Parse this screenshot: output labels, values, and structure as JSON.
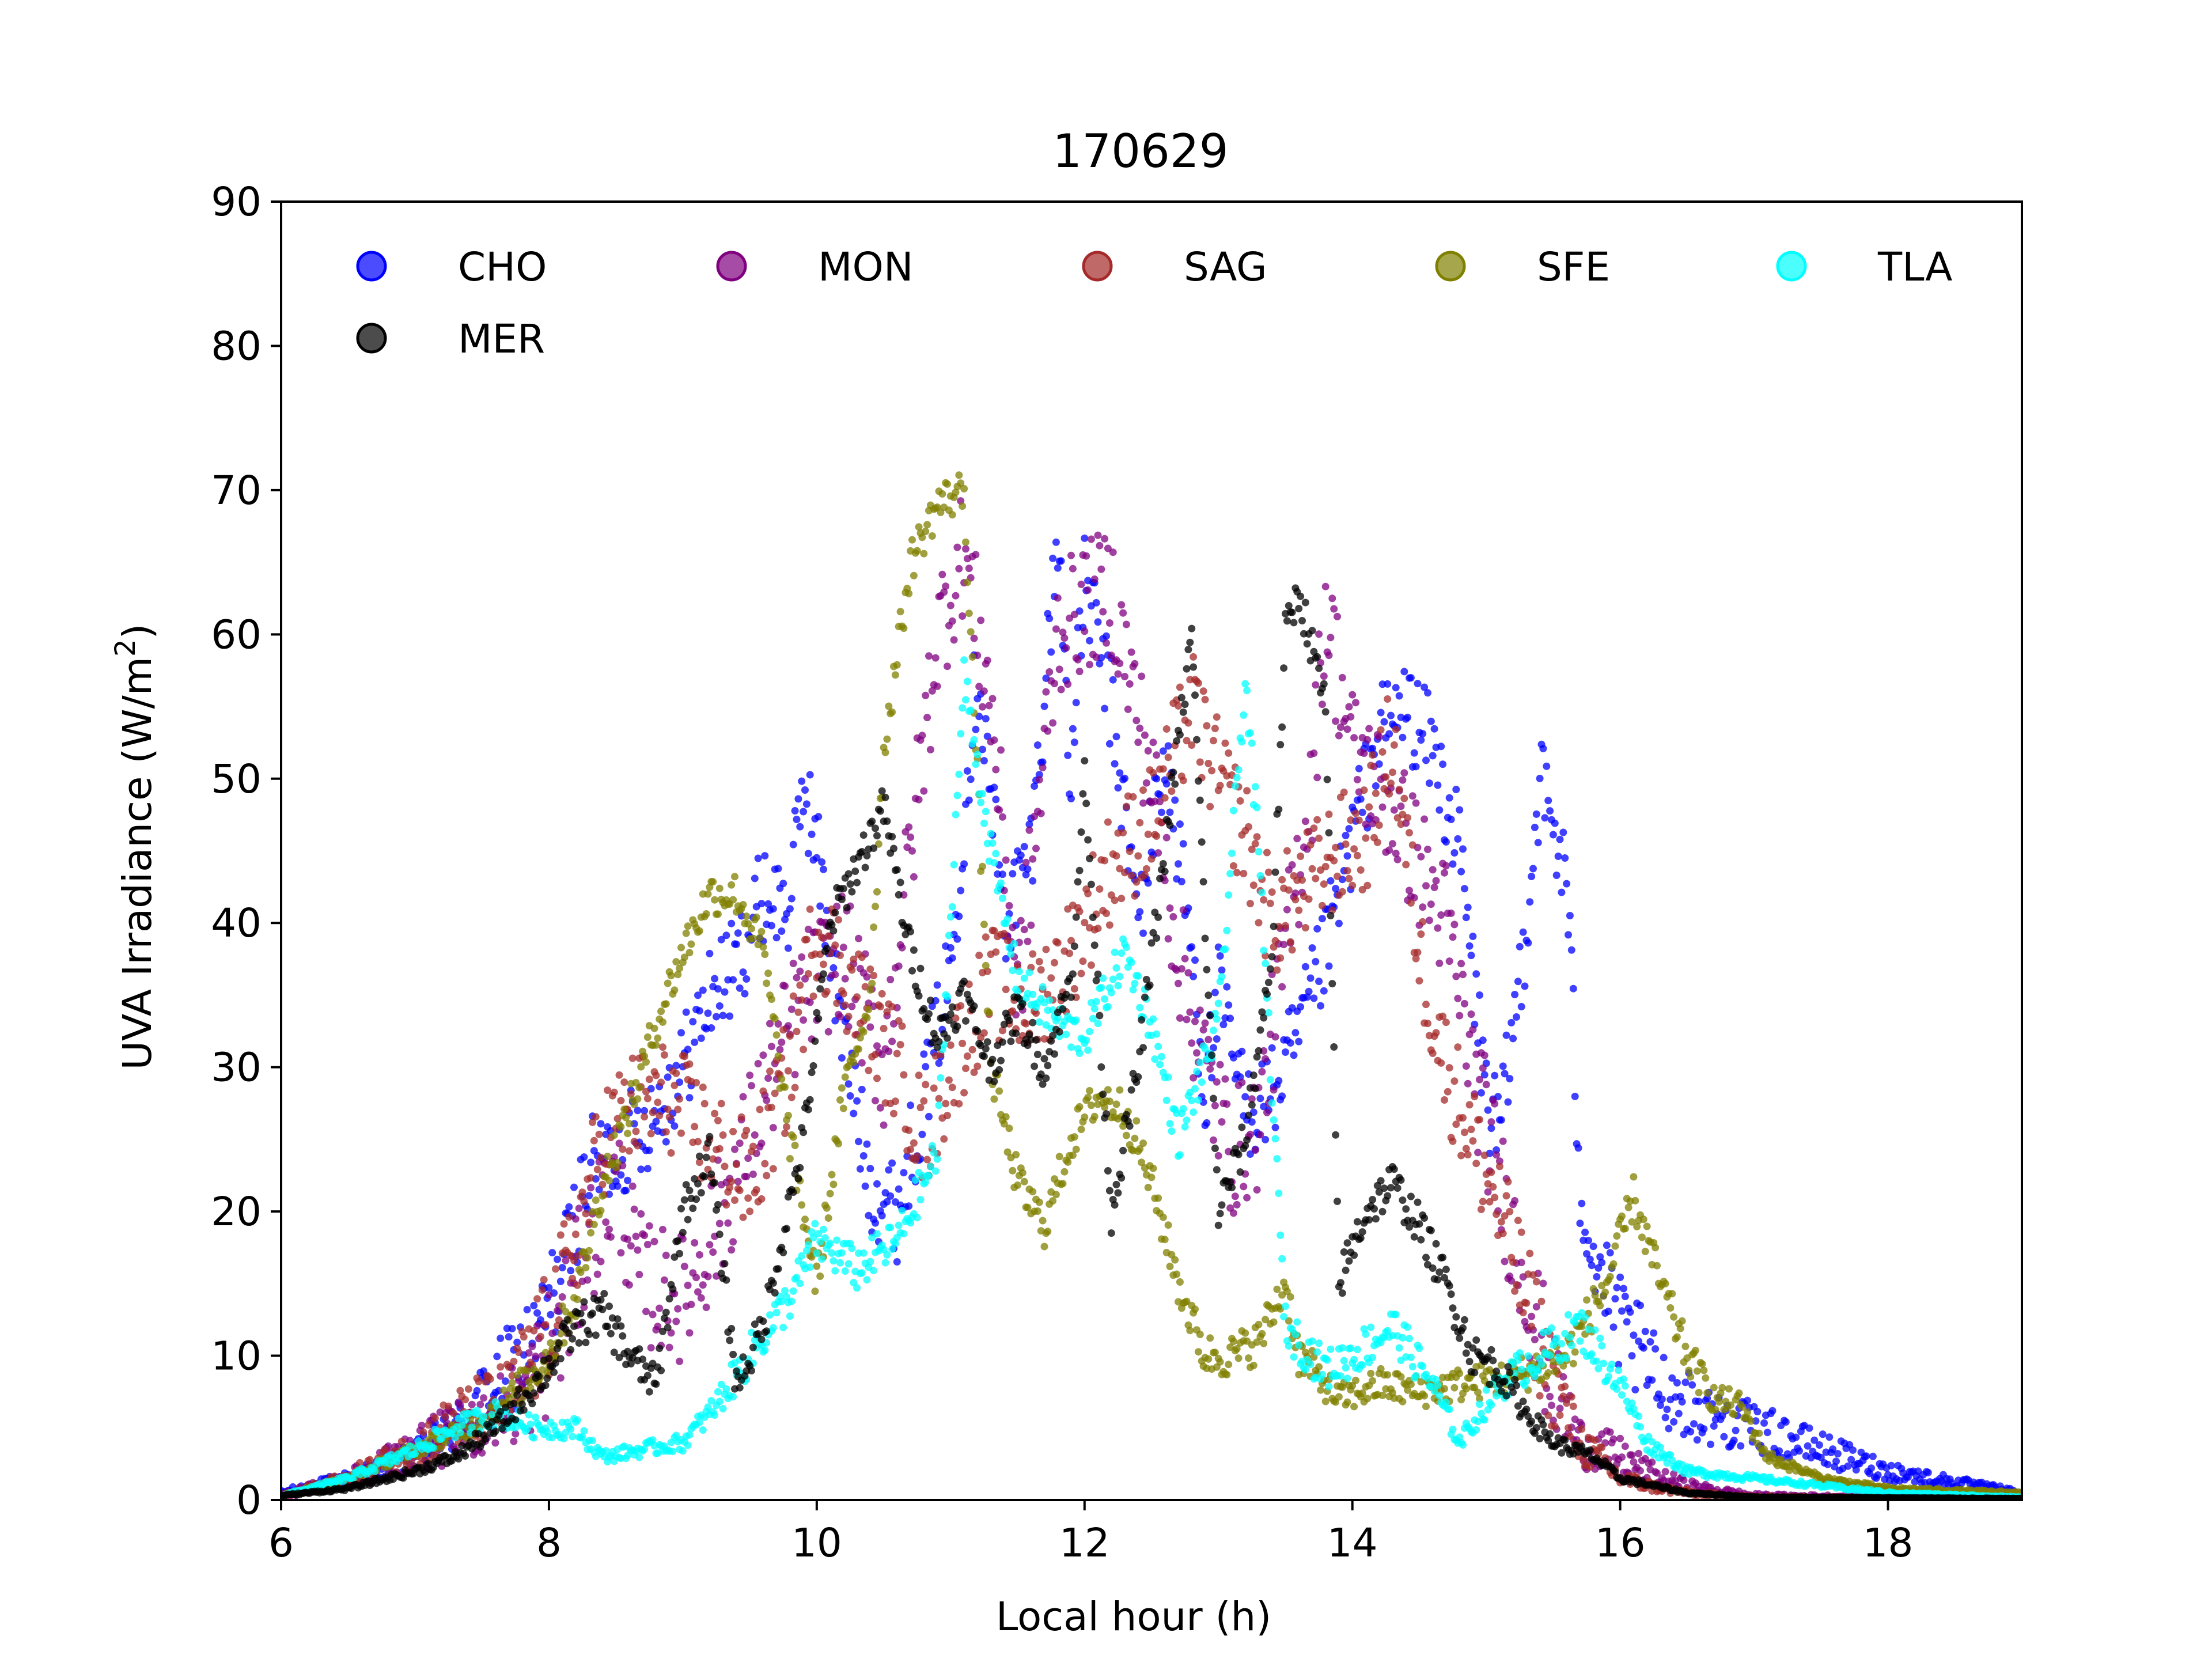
{
  "chart_data": {
    "type": "scatter",
    "title": "170629",
    "xlabel": "Local hour (h)",
    "ylabel": "UVA Irradiance (W/m²)",
    "ylabel_main": "UVA Irradiance (W/m",
    "ylabel_sup": "2",
    "ylabel_close": ")",
    "xlim": [
      6,
      19
    ],
    "ylim": [
      0,
      90
    ],
    "xticks": [
      6,
      8,
      10,
      12,
      14,
      16,
      18
    ],
    "yticks": [
      0,
      10,
      20,
      30,
      40,
      50,
      60,
      70,
      80,
      90
    ],
    "xtick_labels": [
      "6",
      "8",
      "10",
      "12",
      "14",
      "16",
      "18"
    ],
    "ytick_labels": [
      "0",
      "10",
      "20",
      "30",
      "40",
      "50",
      "60",
      "70",
      "80",
      "90"
    ],
    "grid": false,
    "legend_position": "top",
    "series": [
      {
        "name": "CHO",
        "color": "#0000ff",
        "points": [
          [
            6.0,
            0.5
          ],
          [
            6.5,
            1.5
          ],
          [
            7.0,
            3.0
          ],
          [
            7.3,
            5.0
          ],
          [
            7.6,
            8.0
          ],
          [
            7.9,
            11.0
          ],
          [
            8.1,
            16.0
          ],
          [
            8.3,
            23.0
          ],
          [
            8.5,
            24.0
          ],
          [
            8.8,
            27.0
          ],
          [
            9.0,
            30.0
          ],
          [
            9.2,
            35.0
          ],
          [
            9.4,
            37.0
          ],
          [
            9.6,
            42.0
          ],
          [
            9.8,
            41.0
          ],
          [
            9.9,
            50.0
          ],
          [
            10.0,
            45.0
          ],
          [
            10.2,
            32.0
          ],
          [
            10.4,
            22.0
          ],
          [
            10.6,
            20.0
          ],
          [
            10.8,
            28.0
          ],
          [
            11.0,
            37.0
          ],
          [
            11.2,
            58.0
          ],
          [
            11.4,
            40.0
          ],
          [
            11.6,
            45.0
          ],
          [
            11.8,
            67.0
          ],
          [
            11.9,
            50.0
          ],
          [
            12.0,
            64.0
          ],
          [
            12.2,
            55.0
          ],
          [
            12.4,
            40.0
          ],
          [
            12.6,
            52.0
          ],
          [
            12.8,
            38.0
          ],
          [
            12.9,
            28.0
          ],
          [
            13.0,
            35.0
          ],
          [
            13.2,
            27.0
          ],
          [
            13.4,
            28.0
          ],
          [
            13.6,
            32.0
          ],
          [
            13.8,
            38.0
          ],
          [
            14.0,
            46.0
          ],
          [
            14.2,
            53.0
          ],
          [
            14.4,
            55.0
          ],
          [
            14.6,
            52.0
          ],
          [
            14.8,
            45.0
          ],
          [
            15.0,
            28.0
          ],
          [
            15.1,
            25.0
          ],
          [
            15.3,
            40.0
          ],
          [
            15.4,
            50.0
          ],
          [
            15.6,
            43.0
          ],
          [
            15.7,
            22.0
          ],
          [
            15.8,
            17.0
          ],
          [
            16.0,
            12.0
          ],
          [
            16.3,
            8.0
          ],
          [
            16.6,
            6.0
          ],
          [
            17.0,
            5.0
          ],
          [
            17.5,
            3.5
          ],
          [
            18.0,
            2.0
          ],
          [
            18.5,
            1.2
          ],
          [
            19.0,
            0.5
          ]
        ],
        "noise": 3.5
      },
      {
        "name": "MON",
        "color": "#800080",
        "points": [
          [
            6.0,
            0.3
          ],
          [
            6.5,
            1.5
          ],
          [
            7.0,
            3.5
          ],
          [
            7.4,
            5.0
          ],
          [
            7.8,
            7.0
          ],
          [
            8.1,
            12.0
          ],
          [
            8.3,
            18.0
          ],
          [
            8.5,
            22.0
          ],
          [
            8.7,
            15.0
          ],
          [
            9.0,
            14.0
          ],
          [
            9.3,
            20.0
          ],
          [
            9.6,
            28.0
          ],
          [
            9.9,
            35.0
          ],
          [
            10.2,
            38.0
          ],
          [
            10.5,
            30.0
          ],
          [
            10.7,
            45.0
          ],
          [
            10.9,
            60.0
          ],
          [
            11.1,
            66.0
          ],
          [
            11.3,
            55.0
          ],
          [
            11.5,
            35.0
          ],
          [
            11.8,
            60.0
          ],
          [
            12.0,
            62.0
          ],
          [
            12.2,
            63.0
          ],
          [
            12.5,
            50.0
          ],
          [
            12.7,
            38.0
          ],
          [
            12.9,
            30.0
          ],
          [
            13.1,
            24.0
          ],
          [
            13.3,
            26.0
          ],
          [
            13.5,
            38.0
          ],
          [
            13.7,
            50.0
          ],
          [
            13.8,
            62.0
          ],
          [
            14.0,
            52.0
          ],
          [
            14.3,
            48.0
          ],
          [
            14.5,
            44.0
          ],
          [
            14.7,
            40.0
          ],
          [
            14.9,
            30.0
          ],
          [
            15.1,
            22.0
          ],
          [
            15.3,
            15.0
          ],
          [
            15.5,
            8.0
          ],
          [
            15.7,
            4.0
          ],
          [
            16.0,
            3.0
          ],
          [
            16.3,
            1.5
          ],
          [
            16.6,
            0.8
          ],
          [
            17.0,
            0.3
          ],
          [
            19.0,
            0.1
          ]
        ],
        "noise": 4.5
      },
      {
        "name": "SAG",
        "color": "#a52a2a",
        "points": [
          [
            6.0,
            0.2
          ],
          [
            6.5,
            1.5
          ],
          [
            7.0,
            3.5
          ],
          [
            7.3,
            5.5
          ],
          [
            7.7,
            7.0
          ],
          [
            8.0,
            12.0
          ],
          [
            8.2,
            18.0
          ],
          [
            8.4,
            25.0
          ],
          [
            8.6,
            27.0
          ],
          [
            8.9,
            28.0
          ],
          [
            9.2,
            25.0
          ],
          [
            9.5,
            22.0
          ],
          [
            9.8,
            30.0
          ],
          [
            10.0,
            40.0
          ],
          [
            10.3,
            35.0
          ],
          [
            10.6,
            30.0
          ],
          [
            10.8,
            25.0
          ],
          [
            11.0,
            30.0
          ],
          [
            11.3,
            36.0
          ],
          [
            11.6,
            34.0
          ],
          [
            11.9,
            38.0
          ],
          [
            12.2,
            44.0
          ],
          [
            12.5,
            47.0
          ],
          [
            12.8,
            55.0
          ],
          [
            13.0,
            50.0
          ],
          [
            13.2,
            46.0
          ],
          [
            13.4,
            40.0
          ],
          [
            13.6,
            42.0
          ],
          [
            13.9,
            45.0
          ],
          [
            14.1,
            46.0
          ],
          [
            14.3,
            53.0
          ],
          [
            14.5,
            38.0
          ],
          [
            14.7,
            30.0
          ],
          [
            14.9,
            25.0
          ],
          [
            15.1,
            20.0
          ],
          [
            15.3,
            14.0
          ],
          [
            15.5,
            8.0
          ],
          [
            15.7,
            4.0
          ],
          [
            16.0,
            1.5
          ],
          [
            16.3,
            0.8
          ],
          [
            16.6,
            0.4
          ],
          [
            17.0,
            0.2
          ],
          [
            19.0,
            0.1
          ]
        ],
        "noise": 4.0
      },
      {
        "name": "SFE",
        "color": "#808000",
        "points": [
          [
            6.0,
            0.3
          ],
          [
            6.5,
            1.5
          ],
          [
            7.0,
            3.5
          ],
          [
            7.4,
            5.0
          ],
          [
            7.7,
            7.0
          ],
          [
            8.0,
            10.0
          ],
          [
            8.2,
            14.0
          ],
          [
            8.4,
            22.0
          ],
          [
            8.6,
            27.0
          ],
          [
            8.8,
            33.0
          ],
          [
            9.0,
            38.0
          ],
          [
            9.2,
            42.0
          ],
          [
            9.4,
            42.0
          ],
          [
            9.6,
            38.0
          ],
          [
            9.8,
            25.0
          ],
          [
            10.0,
            15.0
          ],
          [
            10.2,
            28.0
          ],
          [
            10.4,
            35.0
          ],
          [
            10.5,
            52.0
          ],
          [
            10.7,
            65.0
          ],
          [
            10.9,
            69.0
          ],
          [
            11.1,
            70.0
          ],
          [
            11.2,
            50.0
          ],
          [
            11.3,
            30.0
          ],
          [
            11.5,
            22.0
          ],
          [
            11.7,
            19.0
          ],
          [
            11.9,
            25.0
          ],
          [
            12.1,
            28.0
          ],
          [
            12.3,
            27.0
          ],
          [
            12.5,
            22.0
          ],
          [
            12.7,
            15.0
          ],
          [
            12.9,
            10.0
          ],
          [
            13.1,
            10.0
          ],
          [
            13.3,
            11.0
          ],
          [
            13.5,
            15.0
          ],
          [
            13.6,
            10.0
          ],
          [
            13.9,
            7.0
          ],
          [
            14.2,
            8.0
          ],
          [
            14.5,
            7.5
          ],
          [
            14.8,
            8.0
          ],
          [
            15.2,
            8.5
          ],
          [
            15.6,
            10.0
          ],
          [
            15.9,
            15.0
          ],
          [
            16.1,
            21.0
          ],
          [
            16.3,
            15.0
          ],
          [
            16.5,
            10.0
          ],
          [
            16.7,
            7.0
          ],
          [
            16.9,
            6.5
          ],
          [
            17.1,
            3.0
          ],
          [
            17.5,
            1.5
          ],
          [
            18.0,
            0.8
          ],
          [
            19.0,
            0.5
          ]
        ],
        "noise": 1.5
      },
      {
        "name": "TLA",
        "color": "#00ffff",
        "points": [
          [
            6.0,
            0.3
          ],
          [
            6.5,
            1.5
          ],
          [
            7.0,
            3.5
          ],
          [
            7.3,
            5.0
          ],
          [
            7.6,
            6.0
          ],
          [
            7.9,
            5.0
          ],
          [
            8.2,
            5.0
          ],
          [
            8.4,
            3.0
          ],
          [
            8.7,
            3.5
          ],
          [
            9.0,
            4.0
          ],
          [
            9.2,
            6.0
          ],
          [
            9.5,
            10.0
          ],
          [
            9.8,
            14.0
          ],
          [
            10.0,
            18.0
          ],
          [
            10.3,
            16.0
          ],
          [
            10.6,
            18.0
          ],
          [
            10.9,
            24.0
          ],
          [
            11.1,
            57.0
          ],
          [
            11.3,
            45.0
          ],
          [
            11.5,
            36.0
          ],
          [
            11.8,
            33.0
          ],
          [
            12.0,
            32.0
          ],
          [
            12.3,
            38.0
          ],
          [
            12.5,
            33.0
          ],
          [
            12.7,
            25.0
          ],
          [
            13.0,
            33.0
          ],
          [
            13.2,
            57.0
          ],
          [
            13.3,
            45.0
          ],
          [
            13.5,
            12.0
          ],
          [
            13.8,
            9.0
          ],
          [
            14.0,
            10.0
          ],
          [
            14.3,
            12.0
          ],
          [
            14.6,
            8.0
          ],
          [
            14.8,
            4.0
          ],
          [
            15.1,
            8.0
          ],
          [
            15.4,
            10.0
          ],
          [
            15.7,
            12.0
          ],
          [
            16.0,
            8.0
          ],
          [
            16.2,
            4.0
          ],
          [
            16.5,
            2.0
          ],
          [
            17.0,
            1.5
          ],
          [
            17.5,
            1.0
          ],
          [
            18.0,
            0.5
          ],
          [
            19.0,
            0.2
          ]
        ],
        "noise": 1.5
      },
      {
        "name": "MER",
        "color": "#000000",
        "points": [
          [
            6.0,
            0.3
          ],
          [
            6.5,
            0.8
          ],
          [
            7.0,
            2.0
          ],
          [
            7.3,
            3.0
          ],
          [
            7.6,
            5.0
          ],
          [
            7.9,
            8.0
          ],
          [
            8.2,
            12.0
          ],
          [
            8.4,
            13.0
          ],
          [
            8.6,
            10.0
          ],
          [
            8.8,
            8.0
          ],
          [
            9.0,
            20.0
          ],
          [
            9.2,
            24.0
          ],
          [
            9.4,
            8.0
          ],
          [
            9.6,
            12.0
          ],
          [
            9.9,
            25.0
          ],
          [
            10.1,
            40.0
          ],
          [
            10.3,
            44.0
          ],
          [
            10.5,
            48.0
          ],
          [
            10.7,
            38.0
          ],
          [
            10.9,
            32.0
          ],
          [
            11.1,
            35.0
          ],
          [
            11.3,
            30.0
          ],
          [
            11.5,
            34.0
          ],
          [
            11.7,
            30.0
          ],
          [
            11.9,
            36.0
          ],
          [
            12.0,
            50.0
          ],
          [
            12.2,
            20.0
          ],
          [
            12.4,
            30.0
          ],
          [
            12.6,
            45.0
          ],
          [
            12.8,
            60.0
          ],
          [
            13.0,
            20.0
          ],
          [
            13.2,
            25.0
          ],
          [
            13.4,
            38.0
          ],
          [
            13.5,
            60.0
          ],
          [
            13.6,
            63.0
          ],
          [
            13.8,
            55.0
          ],
          [
            13.9,
            15.0
          ],
          [
            14.1,
            20.0
          ],
          [
            14.3,
            22.0
          ],
          [
            14.5,
            19.0
          ],
          [
            14.7,
            15.0
          ],
          [
            14.9,
            10.0
          ],
          [
            15.1,
            9.0
          ],
          [
            15.3,
            6.0
          ],
          [
            15.5,
            4.0
          ],
          [
            15.8,
            3.0
          ],
          [
            16.0,
            1.5
          ],
          [
            16.5,
            0.5
          ],
          [
            17.0,
            0.2
          ],
          [
            19.0,
            0.1
          ]
        ],
        "noise": 1.5
      }
    ]
  }
}
